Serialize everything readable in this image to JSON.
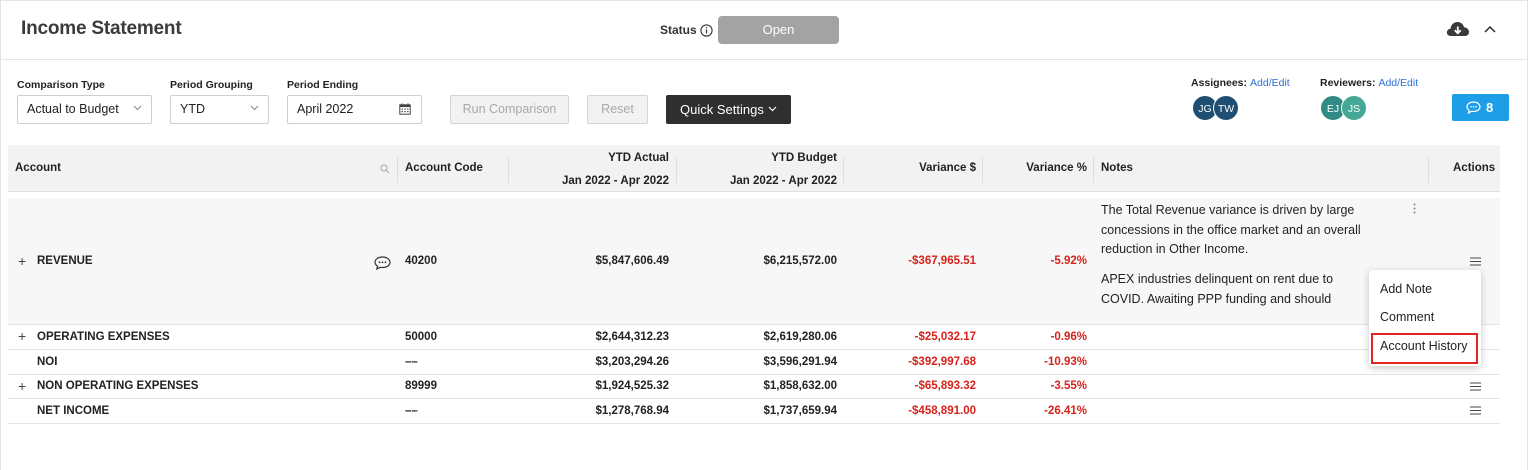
{
  "header": {
    "title": "Income Statement",
    "status_label": "Status",
    "status_value": "Open"
  },
  "filters": {
    "comparison_type": {
      "label": "Comparison Type",
      "value": "Actual to Budget"
    },
    "period_grouping": {
      "label": "Period Grouping",
      "value": "YTD"
    },
    "period_ending": {
      "label": "Period Ending",
      "value": "April 2022"
    },
    "run_comparison": "Run Comparison",
    "reset": "Reset",
    "quick_settings": "Quick Settings"
  },
  "assignees": {
    "label": "Assignees:",
    "link": "Add/Edit",
    "people": [
      "JG",
      "TW"
    ]
  },
  "reviewers": {
    "label": "Reviewers:",
    "link": "Add/Edit",
    "people": [
      "EJ",
      "JS"
    ]
  },
  "comments": {
    "count": "8"
  },
  "colors": {
    "avatar_dark": "#1f4e73",
    "avatar_teal": "#3a9b8e",
    "negative": "#d5221b",
    "accent_blue": "#1d9ee6"
  },
  "table": {
    "headers": {
      "account": "Account",
      "account_code": "Account Code",
      "ytd_actual": "YTD Actual",
      "ytd_actual_range": "Jan 2022 - Apr 2022",
      "ytd_budget": "YTD Budget",
      "ytd_budget_range": "Jan 2022 - Apr 2022",
      "variance_dollar": "Variance $",
      "variance_pct": "Variance %",
      "notes": "Notes",
      "actions": "Actions"
    },
    "rows": [
      {
        "account": "REVENUE",
        "code": "40200",
        "actual": "$5,847,606.49",
        "budget": "$6,215,572.00",
        "var_dollar": "-$367,965.51",
        "var_pct": "-5.92%",
        "note_1": "The Total Revenue variance is driven by large concessions in the office market and an overall reduction in Other Income.",
        "note_2": "APEX industries delinquent on rent due to COVID. Awaiting PPP funding and should resume rent pay"
      },
      {
        "account": "OPERATING EXPENSES",
        "code": "50000",
        "actual": "$2,644,312.23",
        "budget": "$2,619,280.06",
        "var_dollar": "-$25,032.17",
        "var_pct": "-0.96%"
      },
      {
        "account": "NOI",
        "code": "––",
        "actual": "$3,203,294.26",
        "budget": "$3,596,291.94",
        "var_dollar": "-$392,997.68",
        "var_pct": "-10.93%"
      },
      {
        "account": "NON OPERATING EXPENSES",
        "code": "89999",
        "actual": "$1,924,525.32",
        "budget": "$1,858,632.00",
        "var_dollar": "-$65,893.32",
        "var_pct": "-3.55%"
      },
      {
        "account": "NET INCOME",
        "code": "––",
        "actual": "$1,278,768.94",
        "budget": "$1,737,659.94",
        "var_dollar": "-$458,891.00",
        "var_pct": "-26.41%"
      }
    ]
  },
  "actions_menu": {
    "items": [
      "Add Note",
      "Comment",
      "Account History"
    ]
  }
}
